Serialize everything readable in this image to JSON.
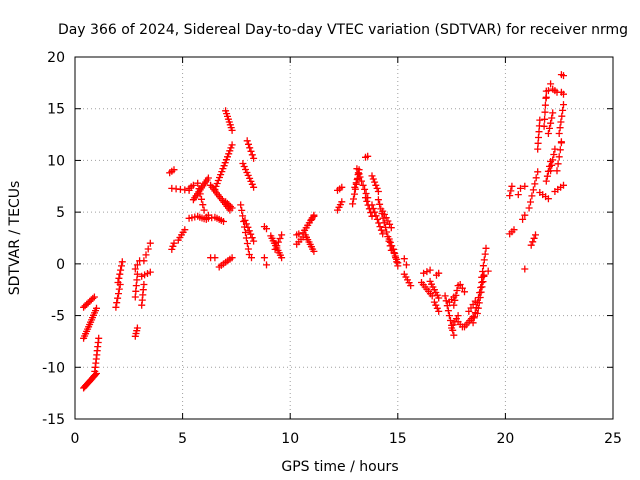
{
  "chart_data": {
    "type": "scatter",
    "title": "Day 366 of 2024, Sidereal Day-to-day VTEC variation (SDTVAR) for receiver nrmg",
    "xlabel": "GPS time / hours",
    "ylabel": "SDTVAR / TECUs",
    "xlim": [
      0,
      25
    ],
    "ylim": [
      -15,
      20
    ],
    "xticks": [
      0,
      5,
      10,
      15,
      20,
      25
    ],
    "yticks": [
      -15,
      -10,
      -5,
      0,
      5,
      10,
      15,
      20
    ],
    "grid": true,
    "marker": "+",
    "color": "#ff0000",
    "series": [
      {
        "name": "SDTVAR",
        "segments": [
          {
            "x0": 0.4,
            "y0": -4.2,
            "x1": 0.9,
            "y1": -3.2,
            "n": 8
          },
          {
            "x0": 0.4,
            "y0": -7.2,
            "x1": 1.0,
            "y1": -4.3,
            "n": 14
          },
          {
            "x0": 0.4,
            "y0": -12.0,
            "x1": 1.0,
            "y1": -10.6,
            "n": 14
          },
          {
            "x0": 0.9,
            "y0": -10.8,
            "x1": 1.1,
            "y1": -7.2,
            "n": 10
          },
          {
            "x0": 1.9,
            "y0": -4.2,
            "x1": 2.1,
            "y1": -2.0,
            "n": 6
          },
          {
            "x0": 2.0,
            "y0": -1.8,
            "x1": 2.2,
            "y1": 0.2,
            "n": 6
          },
          {
            "x0": 2.8,
            "y0": -7.0,
            "x1": 2.9,
            "y1": -6.2,
            "n": 4
          },
          {
            "x0": 2.8,
            "y0": -3.2,
            "x1": 2.9,
            "y1": -1.0,
            "n": 5
          },
          {
            "x0": 2.8,
            "y0": -0.5,
            "x1": 3.0,
            "y1": 0.3,
            "n": 3
          },
          {
            "x0": 3.1,
            "y0": -4.0,
            "x1": 3.2,
            "y1": -2.0,
            "n": 5
          },
          {
            "x0": 3.1,
            "y0": -1.2,
            "x1": 3.5,
            "y1": -0.8,
            "n": 4
          },
          {
            "x0": 3.2,
            "y0": 0.3,
            "x1": 3.5,
            "y1": 2.0,
            "n": 4
          },
          {
            "x0": 4.5,
            "y0": 1.4,
            "x1": 4.6,
            "y1": 2.0,
            "n": 3
          },
          {
            "x0": 4.4,
            "y0": 8.8,
            "x1": 4.6,
            "y1": 9.1,
            "n": 3
          },
          {
            "x0": 4.5,
            "y0": 7.3,
            "x1": 5.3,
            "y1": 7.1,
            "n": 5
          },
          {
            "x0": 4.8,
            "y0": 2.3,
            "x1": 5.1,
            "y1": 3.3,
            "n": 5
          },
          {
            "x0": 5.3,
            "y0": 7.3,
            "x1": 5.5,
            "y1": 7.6,
            "n": 3
          },
          {
            "x0": 5.3,
            "y0": 4.4,
            "x1": 5.7,
            "y1": 4.6,
            "n": 4
          },
          {
            "x0": 5.5,
            "y0": 6.2,
            "x1": 6.2,
            "y1": 8.3,
            "n": 12
          },
          {
            "x0": 5.7,
            "y0": 7.8,
            "x1": 6.0,
            "y1": 5.2,
            "n": 6
          },
          {
            "x0": 5.8,
            "y0": 4.5,
            "x1": 6.1,
            "y1": 4.3,
            "n": 4
          },
          {
            "x0": 6.1,
            "y0": 4.5,
            "x1": 6.2,
            "y1": 4.7,
            "n": 2
          },
          {
            "x0": 6.2,
            "y0": 4.4,
            "x1": 6.5,
            "y1": 4.5,
            "n": 3
          },
          {
            "x0": 6.3,
            "y0": 7.6,
            "x1": 7.2,
            "y1": 5.2,
            "n": 14
          },
          {
            "x0": 6.3,
            "y0": 0.6,
            "x1": 6.5,
            "y1": 0.6,
            "n": 2
          },
          {
            "x0": 6.5,
            "y0": 7.2,
            "x1": 7.3,
            "y1": 11.5,
            "n": 16
          },
          {
            "x0": 6.6,
            "y0": 4.4,
            "x1": 6.9,
            "y1": 4.1,
            "n": 4
          },
          {
            "x0": 6.7,
            "y0": -0.3,
            "x1": 7.3,
            "y1": 0.6,
            "n": 7
          },
          {
            "x0": 7.0,
            "y0": 14.8,
            "x1": 7.3,
            "y1": 12.9,
            "n": 8
          },
          {
            "x0": 7.0,
            "y0": 6.0,
            "x1": 7.3,
            "y1": 5.4,
            "n": 5
          },
          {
            "x0": 7.7,
            "y0": 5.7,
            "x1": 8.1,
            "y1": 0.9,
            "n": 10
          },
          {
            "x0": 7.8,
            "y0": 9.7,
            "x1": 8.3,
            "y1": 7.4,
            "n": 9
          },
          {
            "x0": 8.0,
            "y0": 11.9,
            "x1": 8.3,
            "y1": 10.2,
            "n": 6
          },
          {
            "x0": 7.9,
            "y0": 4.2,
            "x1": 8.3,
            "y1": 2.2,
            "n": 7
          },
          {
            "x0": 8.2,
            "y0": 0.6,
            "x1": 8.3,
            "y1": 0.6,
            "n": 1
          },
          {
            "x0": 8.8,
            "y0": 3.6,
            "x1": 8.9,
            "y1": 3.4,
            "n": 2
          },
          {
            "x0": 8.8,
            "y0": 0.6,
            "x1": 8.9,
            "y1": -0.1,
            "n": 2
          },
          {
            "x0": 9.1,
            "y0": 2.7,
            "x1": 9.6,
            "y1": 0.6,
            "n": 10
          },
          {
            "x0": 9.3,
            "y0": 1.4,
            "x1": 9.6,
            "y1": 2.8,
            "n": 5
          },
          {
            "x0": 10.3,
            "y0": 2.8,
            "x1": 10.4,
            "y1": 2.9,
            "n": 2
          },
          {
            "x0": 10.3,
            "y0": 1.9,
            "x1": 10.6,
            "y1": 2.6,
            "n": 4
          },
          {
            "x0": 10.6,
            "y0": 3.0,
            "x1": 11.1,
            "y1": 4.7,
            "n": 8
          },
          {
            "x0": 10.7,
            "y0": 2.8,
            "x1": 11.1,
            "y1": 1.2,
            "n": 8
          },
          {
            "x0": 11.0,
            "y0": 4.3,
            "x1": 11.1,
            "y1": 4.6,
            "n": 2
          },
          {
            "x0": 12.2,
            "y0": 7.1,
            "x1": 12.4,
            "y1": 7.4,
            "n": 3
          },
          {
            "x0": 12.2,
            "y0": 5.2,
            "x1": 12.4,
            "y1": 6.0,
            "n": 4
          },
          {
            "x0": 12.9,
            "y0": 5.8,
            "x1": 13.2,
            "y1": 9.1,
            "n": 8
          },
          {
            "x0": 13.0,
            "y0": 7.4,
            "x1": 13.2,
            "y1": 8.7,
            "n": 4
          },
          {
            "x0": 13.1,
            "y0": 9.2,
            "x1": 13.6,
            "y1": 6.4,
            "n": 8
          },
          {
            "x0": 13.5,
            "y0": 10.3,
            "x1": 13.6,
            "y1": 10.4,
            "n": 2
          },
          {
            "x0": 13.5,
            "y0": 6.4,
            "x1": 13.8,
            "y1": 4.6,
            "n": 6
          },
          {
            "x0": 13.8,
            "y0": 8.5,
            "x1": 14.1,
            "y1": 7.0,
            "n": 6
          },
          {
            "x0": 13.8,
            "y0": 5.7,
            "x1": 14.3,
            "y1": 2.9,
            "n": 9
          },
          {
            "x0": 14.1,
            "y0": 6.2,
            "x1": 14.7,
            "y1": 1.3,
            "n": 12
          },
          {
            "x0": 14.3,
            "y0": 5.1,
            "x1": 14.7,
            "y1": 3.5,
            "n": 6
          },
          {
            "x0": 14.6,
            "y0": 2.4,
            "x1": 15.0,
            "y1": 0.1,
            "n": 8
          },
          {
            "x0": 14.8,
            "y0": 1.4,
            "x1": 15.0,
            "y1": -0.2,
            "n": 5
          },
          {
            "x0": 15.3,
            "y0": 0.5,
            "x1": 15.4,
            "y1": -0.1,
            "n": 2
          },
          {
            "x0": 15.3,
            "y0": -1.0,
            "x1": 15.6,
            "y1": -2.1,
            "n": 5
          },
          {
            "x0": 16.1,
            "y0": -1.8,
            "x1": 16.6,
            "y1": -3.1,
            "n": 7
          },
          {
            "x0": 16.2,
            "y0": -0.9,
            "x1": 16.5,
            "y1": -0.6,
            "n": 3
          },
          {
            "x0": 16.5,
            "y0": -1.7,
            "x1": 16.9,
            "y1": -3.3,
            "n": 7
          },
          {
            "x0": 16.7,
            "y0": -3.7,
            "x1": 16.9,
            "y1": -4.6,
            "n": 4
          },
          {
            "x0": 16.8,
            "y0": -1.1,
            "x1": 16.9,
            "y1": -0.9,
            "n": 2
          },
          {
            "x0": 17.2,
            "y0": -3.1,
            "x1": 17.6,
            "y1": -6.9,
            "n": 9
          },
          {
            "x0": 17.4,
            "y0": -3.7,
            "x1": 17.6,
            "y1": -3.2,
            "n": 3
          },
          {
            "x0": 17.5,
            "y0": -6.2,
            "x1": 17.8,
            "y1": -5.0,
            "n": 5
          },
          {
            "x0": 17.6,
            "y0": -4.0,
            "x1": 17.8,
            "y1": -2.1,
            "n": 5
          },
          {
            "x0": 17.8,
            "y0": -5.6,
            "x1": 18.0,
            "y1": -6.1,
            "n": 3
          },
          {
            "x0": 17.9,
            "y0": -2.0,
            "x1": 18.1,
            "y1": -2.7,
            "n": 3
          },
          {
            "x0": 18.1,
            "y0": -6.1,
            "x1": 18.5,
            "y1": -5.1,
            "n": 6
          },
          {
            "x0": 18.3,
            "y0": -4.6,
            "x1": 18.6,
            "y1": -3.6,
            "n": 4
          },
          {
            "x0": 18.5,
            "y0": -5.7,
            "x1": 18.9,
            "y1": -1.8,
            "n": 9
          },
          {
            "x0": 18.7,
            "y0": -4.8,
            "x1": 19.0,
            "y1": -1.2,
            "n": 8
          },
          {
            "x0": 18.9,
            "y0": -1.3,
            "x1": 19.1,
            "y1": 1.5,
            "n": 6
          },
          {
            "x0": 19.0,
            "y0": -1.1,
            "x1": 19.2,
            "y1": -0.7,
            "n": 2
          },
          {
            "x0": 20.2,
            "y0": 2.9,
            "x1": 20.4,
            "y1": 3.3,
            "n": 3
          },
          {
            "x0": 20.2,
            "y0": 6.6,
            "x1": 20.3,
            "y1": 7.5,
            "n": 3
          },
          {
            "x0": 20.6,
            "y0": 6.7,
            "x1": 20.6,
            "y1": 6.7,
            "n": 1
          },
          {
            "x0": 20.7,
            "y0": 7.3,
            "x1": 20.9,
            "y1": 7.5,
            "n": 2
          },
          {
            "x0": 20.9,
            "y0": -0.5,
            "x1": 20.9,
            "y1": -0.5,
            "n": 1
          },
          {
            "x0": 20.8,
            "y0": 4.3,
            "x1": 20.9,
            "y1": 4.7,
            "n": 2
          },
          {
            "x0": 21.1,
            "y0": 5.4,
            "x1": 21.5,
            "y1": 8.9,
            "n": 7
          },
          {
            "x0": 21.2,
            "y0": 1.8,
            "x1": 21.4,
            "y1": 2.8,
            "n": 4
          },
          {
            "x0": 21.5,
            "y0": 11.1,
            "x1": 21.6,
            "y1": 13.9,
            "n": 6
          },
          {
            "x0": 21.6,
            "y0": 6.9,
            "x1": 22.0,
            "y1": 6.3,
            "n": 4
          },
          {
            "x0": 21.8,
            "y0": 13.3,
            "x1": 21.9,
            "y1": 16.7,
            "n": 6
          },
          {
            "x0": 21.9,
            "y0": 8.0,
            "x1": 22.1,
            "y1": 9.9,
            "n": 5
          },
          {
            "x0": 21.9,
            "y0": 16.1,
            "x1": 22.1,
            "y1": 17.4,
            "n": 3
          },
          {
            "x0": 22.0,
            "y0": 12.6,
            "x1": 22.2,
            "y1": 14.6,
            "n": 5
          },
          {
            "x0": 22.1,
            "y0": 9.0,
            "x1": 22.3,
            "y1": 11.1,
            "n": 5
          },
          {
            "x0": 22.2,
            "y0": 16.9,
            "x1": 22.4,
            "y1": 16.6,
            "n": 3
          },
          {
            "x0": 22.3,
            "y0": 7.0,
            "x1": 22.7,
            "y1": 7.6,
            "n": 4
          },
          {
            "x0": 22.4,
            "y0": 9.0,
            "x1": 22.6,
            "y1": 11.7,
            "n": 5
          },
          {
            "x0": 22.5,
            "y0": 12.6,
            "x1": 22.7,
            "y1": 15.4,
            "n": 6
          },
          {
            "x0": 22.6,
            "y0": 18.3,
            "x1": 22.7,
            "y1": 18.2,
            "n": 2
          },
          {
            "x0": 22.6,
            "y0": 16.6,
            "x1": 22.7,
            "y1": 16.4,
            "n": 2
          },
          {
            "x0": 22.6,
            "y0": 11.8,
            "x1": 22.7,
            "y1": 11.8,
            "n": 1
          }
        ]
      }
    ]
  }
}
